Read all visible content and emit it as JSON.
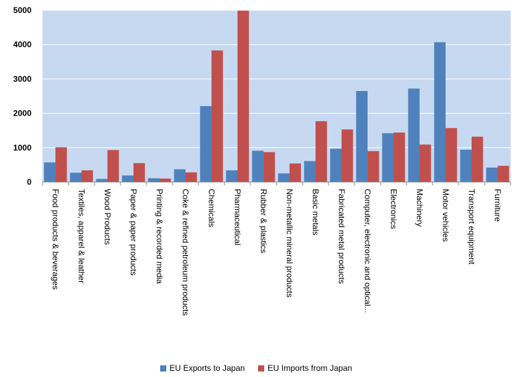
{
  "chart_data": {
    "type": "bar",
    "title": "",
    "xlabel": "",
    "ylabel": "",
    "ylim": [
      0,
      5000
    ],
    "yticks": [
      0,
      1000,
      2000,
      3000,
      4000,
      5000
    ],
    "grid": true,
    "legend_position": "bottom",
    "plot_background": "#c6d9f1",
    "categories": [
      "Food products & beverages",
      "Textiles, apparel & leather",
      "Wood Products",
      "Paper & paper products",
      "Printing & recorded media",
      "Coke & refined petroleum products",
      "Chemicals",
      "Pharmaceutical",
      "Rubber & plastics",
      "Non-metallic mineral products",
      "Basic metals",
      "Fabricated metal products",
      "Computer, electronic and optical...",
      "Electronics",
      "Machinery",
      "Motor vehicles",
      "Transport equipment",
      "Furniture"
    ],
    "series": [
      {
        "name": "EU Exports to Japan",
        "color": "#4f81bd",
        "values": [
          570,
          270,
          90,
          190,
          110,
          370,
          2210,
          340,
          910,
          250,
          610,
          970,
          2650,
          1420,
          2720,
          4070,
          940,
          420
        ]
      },
      {
        "name": "EU Imports from Japan",
        "color": "#c0504d",
        "values": [
          1010,
          340,
          930,
          550,
          100,
          280,
          3830,
          4990,
          870,
          540,
          1770,
          1530,
          900,
          1440,
          1090,
          1570,
          1320,
          470
        ]
      }
    ]
  }
}
